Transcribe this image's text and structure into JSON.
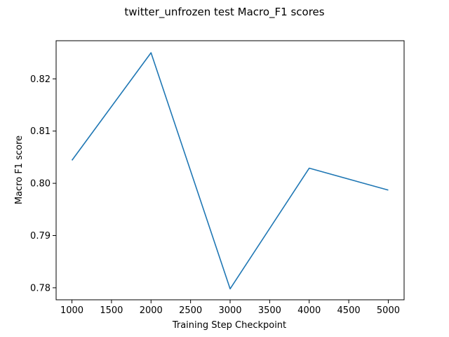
{
  "chart_data": {
    "type": "line",
    "title": "twitter_unfrozen test Macro_F1 scores",
    "xlabel": "Training Step Checkpoint",
    "ylabel": "Macro F1 score",
    "x": [
      1000,
      2000,
      3000,
      4000,
      5000
    ],
    "series": [
      {
        "values": [
          0.8044,
          0.825,
          0.7798,
          0.8029,
          0.7987
        ],
        "color": "#1f77b4"
      }
    ],
    "xlim": [
      800,
      5200
    ],
    "ylim": [
      0.7777,
      0.8273
    ],
    "xticks": [
      1000,
      1500,
      2000,
      2500,
      3000,
      3500,
      4000,
      4500,
      5000
    ],
    "xtick_labels": [
      "1000",
      "1500",
      "2000",
      "2500",
      "3000",
      "3500",
      "4000",
      "4500",
      "5000"
    ],
    "yticks": [
      0.78,
      0.79,
      0.8,
      0.81,
      0.82
    ],
    "ytick_labels": [
      "0.78",
      "0.79",
      "0.80",
      "0.81",
      "0.82"
    ],
    "grid": false,
    "legend": "none"
  }
}
